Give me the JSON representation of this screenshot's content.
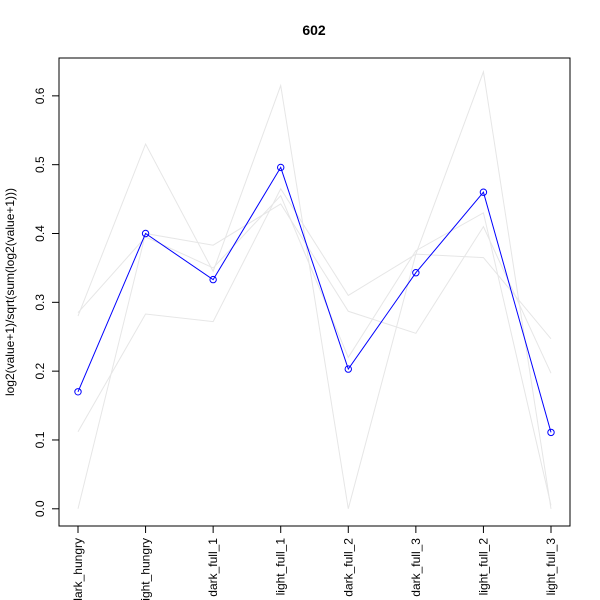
{
  "chart_data": {
    "type": "line",
    "title": "602",
    "xlabel": "",
    "ylabel": "log2(value+1)/sqrt(sum(log2(value+1)))",
    "categories": [
      "dark_hungry",
      "light_hungry",
      "dark_full_1",
      "light_full_1",
      "dark_full_2",
      "dark_full_3",
      "light_full_2",
      "light_full_3"
    ],
    "ylim": [
      -0.025,
      0.655
    ],
    "yticks": [
      0.0,
      0.1,
      0.2,
      0.3,
      0.4,
      0.5,
      0.6
    ],
    "yticks_labels": [
      "0.0",
      "0.1",
      "0.2",
      "0.3",
      "0.4",
      "0.5",
      "0.6"
    ],
    "grid": false,
    "highlight_color": "#0000ff",
    "background_color": "#e6e6e6",
    "series": [
      {
        "values": [
          0.17,
          0.4,
          0.333,
          0.496,
          0.203,
          0.343,
          0.46,
          0.111
        ],
        "highlight": true,
        "markers": true
      },
      {
        "values": [
          0.28,
          0.53,
          0.345,
          0.615,
          0.0,
          0.37,
          0.635,
          0.0
        ]
      },
      {
        "values": [
          0.112,
          0.283,
          0.272,
          0.465,
          0.31,
          0.37,
          0.365,
          0.247
        ]
      },
      {
        "values": [
          0.0,
          0.4,
          0.383,
          0.443,
          0.287,
          0.255,
          0.41,
          0.197
        ]
      },
      {
        "values": [
          0.285,
          0.395,
          0.35,
          0.455,
          0.22,
          0.375,
          0.43,
          0.005
        ]
      }
    ]
  }
}
